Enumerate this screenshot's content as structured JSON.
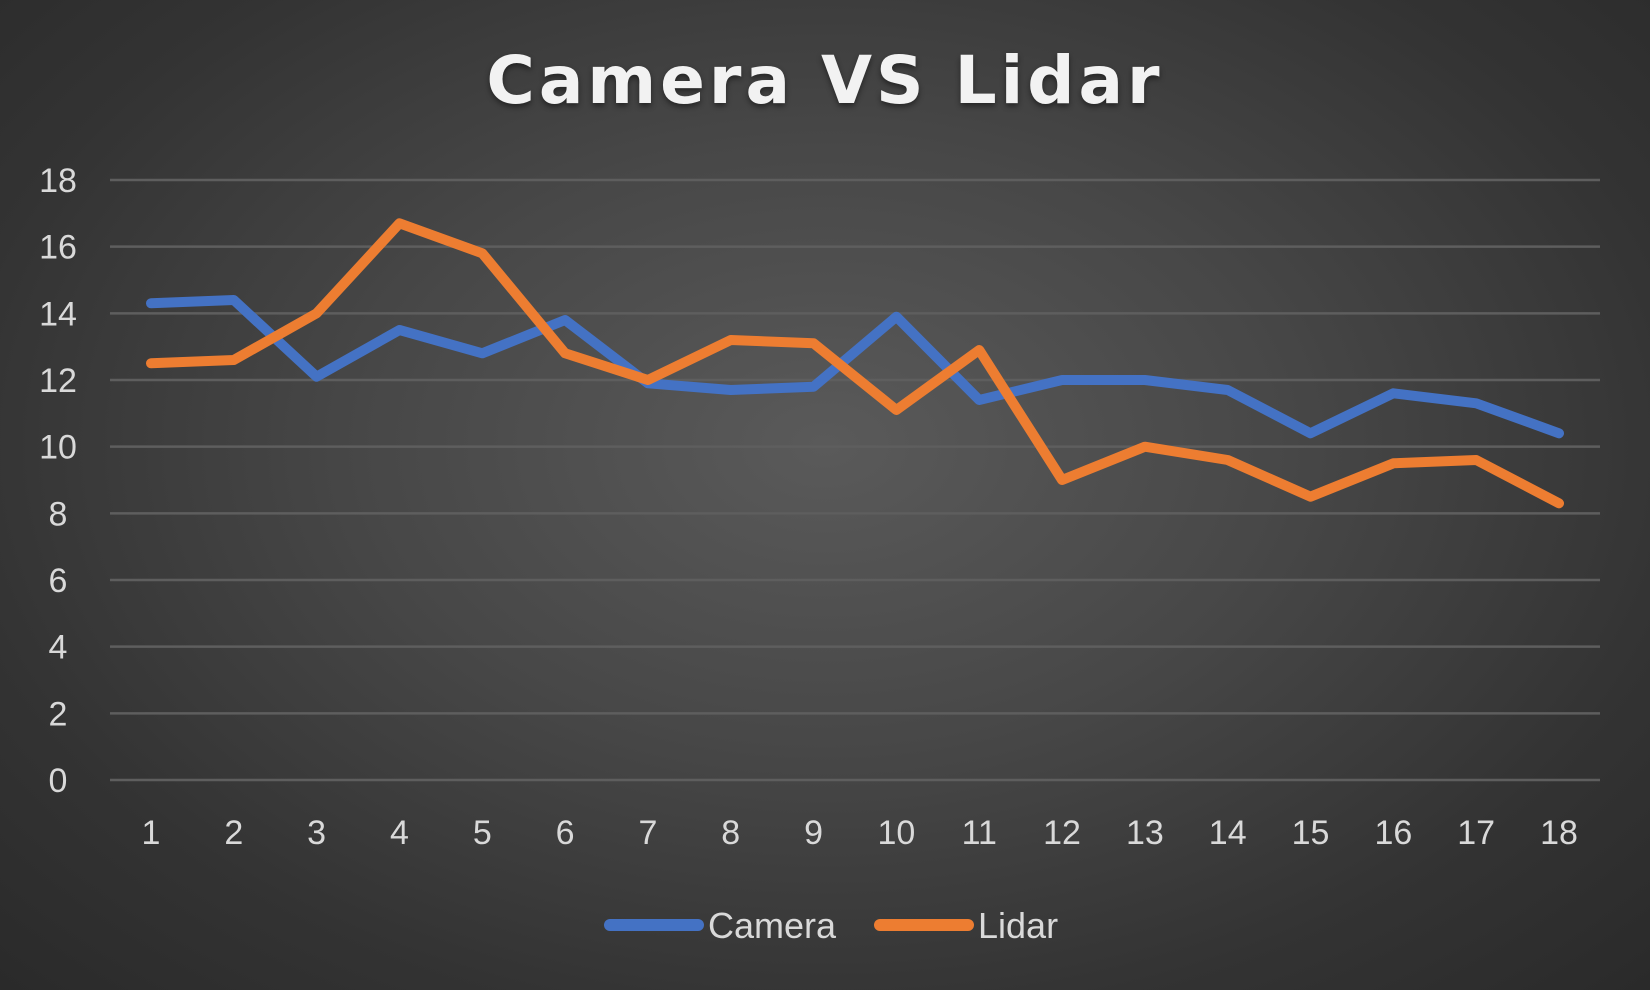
{
  "chart_data": {
    "type": "line",
    "title": "Camera VS Lidar",
    "xlabel": "",
    "ylabel": "",
    "x": [
      "1",
      "2",
      "3",
      "4",
      "5",
      "6",
      "7",
      "8",
      "9",
      "10",
      "11",
      "12",
      "13",
      "14",
      "15",
      "16",
      "17",
      "18"
    ],
    "ylim": [
      0,
      18
    ],
    "yticks": [
      "0",
      "2",
      "4",
      "6",
      "8",
      "10",
      "12",
      "14",
      "16",
      "18"
    ],
    "grid": true,
    "legend_position": "bottom",
    "series": [
      {
        "name": "Camera",
        "color": "#4472c4",
        "values": [
          14.3,
          14.4,
          12.1,
          13.5,
          12.8,
          13.8,
          11.9,
          11.7,
          11.8,
          13.9,
          11.4,
          12.0,
          12.0,
          11.7,
          10.4,
          11.6,
          11.3,
          10.4
        ]
      },
      {
        "name": "Lidar",
        "color": "#ed7d31",
        "values": [
          12.5,
          12.6,
          14.0,
          16.7,
          15.8,
          12.8,
          12.0,
          13.2,
          13.1,
          11.1,
          12.9,
          9.0,
          10.0,
          9.6,
          8.5,
          9.5,
          9.6,
          8.3
        ]
      }
    ]
  }
}
